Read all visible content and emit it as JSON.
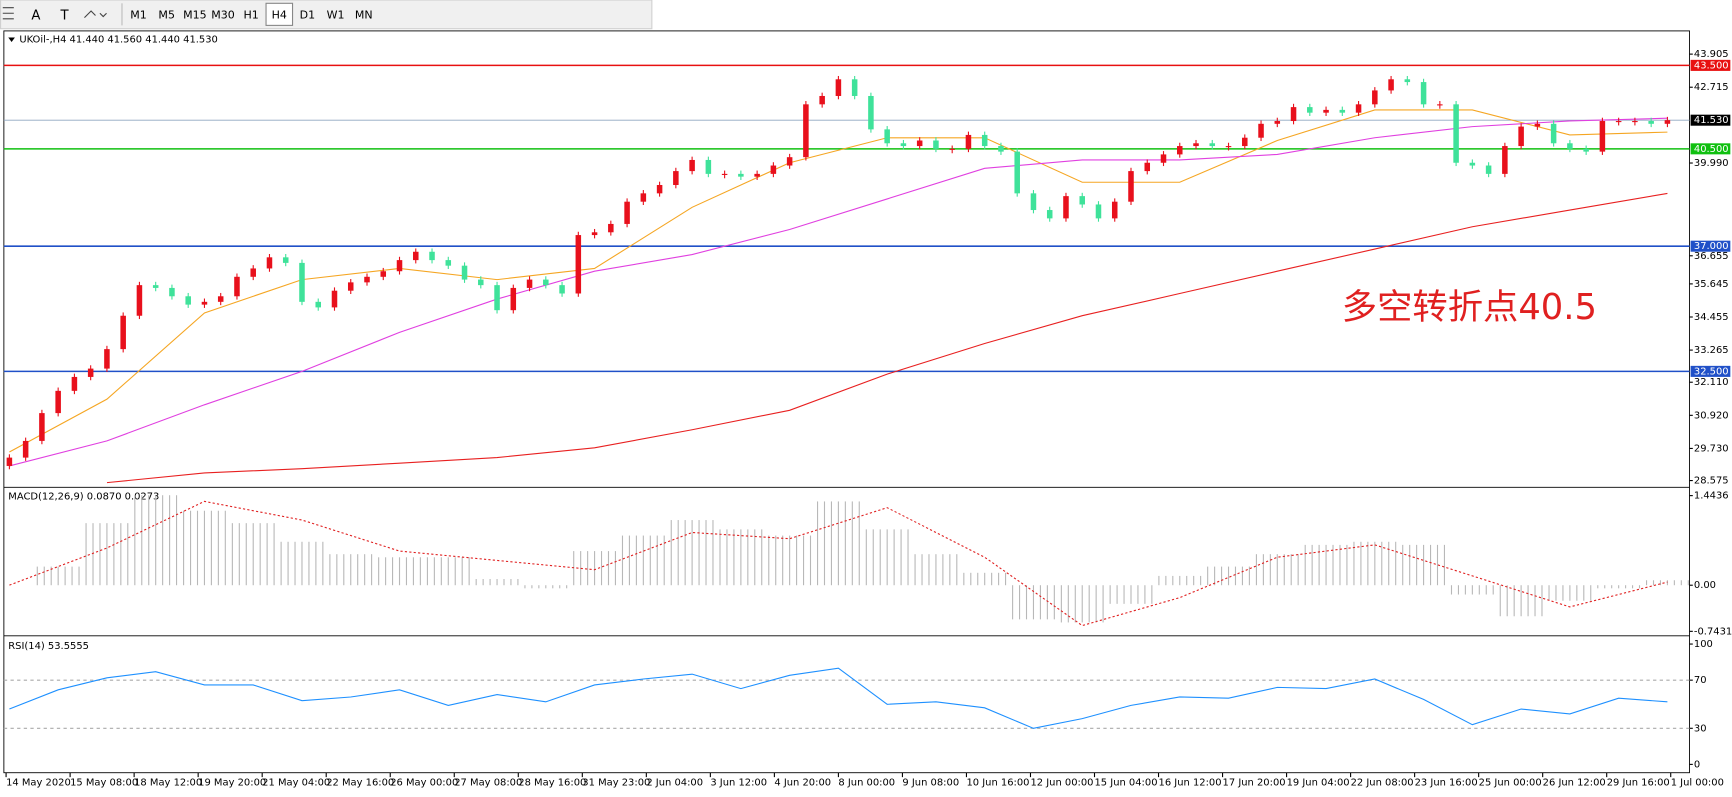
{
  "toolbar": {
    "buttons": [
      "M1",
      "M5",
      "M15",
      "M30",
      "H1",
      "H4",
      "D1",
      "W1",
      "MN"
    ],
    "active_index": 5,
    "tools": [
      "A",
      "T"
    ]
  },
  "chart_data": [
    {
      "type": "candlestick",
      "title": "UKOil-,H4  41.440 41.560 41.440 41.530",
      "categories": [
        "14 May 2020",
        "15 May 08:00",
        "18 May 12:00",
        "19 May 20:00",
        "21 May 04:00",
        "22 May 16:00",
        "26 May 00:00",
        "27 May 08:00",
        "28 May 16:00",
        "31 May 23:00",
        "2 Jun 04:00",
        "3 Jun 12:00",
        "4 Jun 20:00",
        "8 Jun 00:00",
        "9 Jun 08:00",
        "10 Jun 16:00",
        "12 Jun 00:00",
        "15 Jun 04:00",
        "16 Jun 12:00",
        "17 Jun 20:00",
        "19 Jun 04:00",
        "22 Jun 08:00",
        "23 Jun 16:00",
        "25 Jun 00:00",
        "26 Jun 12:00",
        "29 Jun 16:00",
        "1 Jul 00:00"
      ],
      "open": 29.1,
      "close": [
        29.4,
        30.0,
        31.0,
        31.8,
        32.3,
        32.6,
        33.3,
        34.5,
        35.6,
        35.5,
        35.2,
        34.9,
        35.0,
        35.2,
        35.9,
        36.2,
        36.6,
        36.4,
        35.0,
        34.8,
        35.4,
        35.7,
        35.9,
        36.1,
        36.5,
        36.8,
        36.5,
        36.3,
        35.8,
        35.6,
        34.7,
        35.5,
        35.8,
        35.6,
        35.3,
        37.4,
        37.5,
        37.8,
        38.6,
        38.9,
        39.2,
        39.7,
        40.1,
        39.6,
        39.6,
        39.5,
        39.6,
        39.9,
        40.2,
        42.1,
        42.4,
        43.0,
        42.4,
        41.2,
        40.7,
        40.6,
        40.8,
        40.5,
        40.5,
        41.0,
        40.6,
        40.4,
        38.9,
        38.3,
        38.0,
        38.8,
        38.5,
        38.0,
        38.6,
        39.7,
        40.0,
        40.3,
        40.6,
        40.7,
        40.6,
        40.6,
        40.9,
        41.4,
        41.5,
        42.0,
        41.8,
        41.9,
        41.8,
        42.1,
        42.6,
        43.0,
        42.9,
        42.1,
        42.1,
        40.0,
        39.9,
        39.6,
        40.6,
        41.3,
        41.4,
        40.7,
        40.5,
        40.4,
        41.5,
        41.5,
        41.5,
        41.4,
        41.53
      ],
      "up_color": "#e8101c",
      "down_color": "#3fe29a",
      "lines": [
        {
          "color": "#f5a623",
          "values": [
            29.6,
            31.5,
            34.6,
            35.8,
            36.2,
            35.8,
            36.2,
            38.4,
            40.0,
            40.9,
            40.9,
            39.3,
            39.3,
            40.8,
            41.9,
            41.9,
            41.0,
            41.1
          ]
        },
        {
          "color": "#e040e0",
          "values": [
            29.1,
            30.0,
            31.3,
            32.5,
            33.9,
            35.1,
            36.1,
            36.7,
            37.6,
            38.7,
            39.8,
            40.1,
            40.1,
            40.3,
            40.9,
            41.3,
            41.5,
            41.6
          ]
        },
        {
          "color": "#e82020",
          "values": [
            null,
            28.5,
            28.85,
            29.0,
            29.2,
            29.4,
            29.75,
            30.4,
            31.1,
            32.4,
            33.5,
            34.5,
            35.3,
            36.1,
            36.9,
            37.7,
            38.3,
            38.9
          ]
        }
      ],
      "levels": [
        {
          "value": 43.5,
          "label": "43.500",
          "color": "#e81010"
        },
        {
          "value": 41.53,
          "label": "41.530",
          "color": "#8fa6c0",
          "box": "#000000"
        },
        {
          "value": 40.5,
          "label": "40.500",
          "color": "#10c010"
        },
        {
          "value": 37.0,
          "label": "37.000",
          "color": "#2050c8"
        },
        {
          "value": 32.5,
          "label": "32.500",
          "color": "#2050c8"
        }
      ],
      "ylim": [
        28.39,
        44.66
      ],
      "yticks": [
        43.905,
        42.715,
        {
          "value": 39.99,
          "label": "39.990"
        },
        36.655,
        35.645,
        34.455,
        33.265,
        {
          "value": 32.11,
          "label": "32.110"
        },
        {
          "value": 30.92,
          "label": "30.920"
        },
        {
          "value": 29.73,
          "label": "29.730"
        },
        28.575
      ],
      "annotation": "多空转折点40.5"
    },
    {
      "type": "macd",
      "title": "MACD(12,26,9) 0.0870 0.0273",
      "histogram": [
        0.0,
        0.3,
        1.0,
        1.45,
        1.2,
        1.0,
        0.7,
        0.5,
        0.45,
        0.45,
        0.1,
        -0.05,
        0.55,
        0.8,
        1.05,
        0.9,
        0.8,
        1.35,
        0.9,
        0.5,
        0.2,
        -0.55,
        -0.6,
        -0.3,
        0.15,
        0.3,
        0.5,
        0.65,
        0.7,
        0.65,
        -0.15,
        -0.5,
        -0.25,
        -0.05,
        0.08
      ],
      "histogram_color": "#b8b8b8",
      "signal": [
        0.0,
        0.6,
        1.35,
        1.05,
        0.55,
        0.4,
        0.25,
        0.85,
        0.75,
        1.25,
        0.45,
        -0.65,
        -0.2,
        0.45,
        0.65,
        0.15,
        -0.35,
        0.05
      ],
      "signal_color": "#e02020",
      "ylim": [
        -0.78,
        1.55
      ],
      "yticks": [
        1.4436,
        {
          "value": 0,
          "label": "0.00"
        },
        -0.7431
      ]
    },
    {
      "type": "rsi",
      "title": "RSI(14) 53.5555",
      "values": [
        46,
        62,
        72,
        77,
        66,
        66,
        53,
        56,
        62,
        49,
        58,
        52,
        66,
        71,
        75,
        63,
        74,
        80,
        50,
        52,
        47,
        30,
        38,
        49,
        56,
        55,
        64,
        63,
        71,
        54,
        33,
        46,
        42,
        55,
        52
      ],
      "color": "#1e90ff",
      "dashed_levels": [
        70,
        30
      ],
      "ylim": [
        -6,
        105
      ],
      "yticks": [
        100,
        70,
        30,
        0
      ]
    }
  ]
}
